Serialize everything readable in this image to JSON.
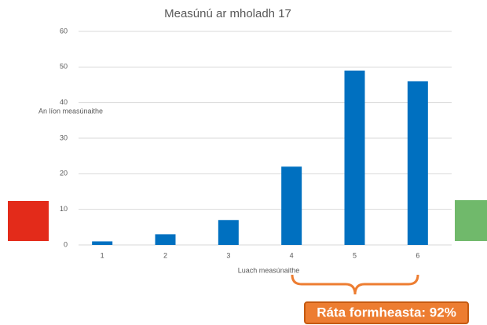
{
  "chart_data": {
    "type": "bar",
    "title": "Measúnú ar mholadh 17",
    "x_label": "Luach measúnaithe",
    "y_label": "An líon measúnaithe",
    "categories": [
      "1",
      "2",
      "3",
      "4",
      "5",
      "6"
    ],
    "values": [
      1,
      3,
      7,
      22,
      49,
      46
    ],
    "color": "#0070c0",
    "ylim": [
      0,
      60
    ],
    "yticks": [
      0,
      10,
      20,
      30,
      40,
      50,
      60
    ],
    "grid": true,
    "annotation": "Ráta formheasta: 92%"
  }
}
